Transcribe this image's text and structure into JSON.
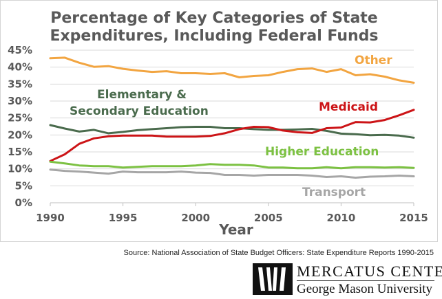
{
  "chart_data": {
    "type": "line",
    "title_lines": [
      "Percentage of Key Categories of State",
      "Expenditures, Including Federal Funds"
    ],
    "xlabel": "Year",
    "ylabel": "",
    "xlim": [
      1990,
      2015
    ],
    "ylim": [
      0,
      45
    ],
    "x_ticks": [
      1990,
      1995,
      2000,
      2005,
      2010,
      2015
    ],
    "y_ticks": [
      "0%",
      "5%",
      "10%",
      "15%",
      "20%",
      "25%",
      "30%",
      "35%",
      "40%",
      "45%"
    ],
    "grid": true,
    "legend": "none",
    "x": [
      1990,
      1991,
      1992,
      1993,
      1994,
      1995,
      1996,
      1997,
      1998,
      1999,
      2000,
      2001,
      2002,
      2003,
      2004,
      2005,
      2006,
      2007,
      2008,
      2009,
      2010,
      2011,
      2012,
      2013,
      2014,
      2015
    ],
    "series": [
      {
        "name": "Other",
        "label_lines": [
          "Other"
        ],
        "color": "#F2A541",
        "values": [
          42.6,
          42.8,
          41.3,
          40.1,
          40.3,
          39.5,
          39.0,
          38.6,
          38.8,
          38.2,
          38.2,
          38.0,
          38.2,
          37.0,
          37.4,
          37.6,
          38.6,
          39.4,
          39.6,
          38.6,
          39.4,
          37.6,
          37.9,
          37.2,
          36.1,
          35.4
        ]
      },
      {
        "name": "Elementary & Secondary Education",
        "label_lines": [
          "Elementary &",
          "Secondary Education"
        ],
        "color": "#4A6B4D",
        "values": [
          22.9,
          21.9,
          21.0,
          21.5,
          20.5,
          20.9,
          21.4,
          21.7,
          22.0,
          22.3,
          22.4,
          22.4,
          22.0,
          22.0,
          21.7,
          21.5,
          21.5,
          21.6,
          21.8,
          21.2,
          20.4,
          20.2,
          19.9,
          20.0,
          19.8,
          19.2
        ]
      },
      {
        "name": "Medicaid",
        "label_lines": [
          "Medicaid"
        ],
        "color": "#CC1417",
        "values": [
          12.3,
          14.3,
          17.4,
          19.0,
          19.6,
          19.8,
          19.8,
          19.8,
          19.5,
          19.5,
          19.5,
          19.7,
          20.5,
          21.7,
          22.4,
          22.3,
          21.3,
          20.8,
          20.6,
          22.0,
          22.2,
          23.8,
          23.7,
          24.4,
          25.8,
          27.4
        ]
      },
      {
        "name": "Higher Education",
        "label_lines": [
          "Higher Education"
        ],
        "color": "#7CC142",
        "values": [
          12.1,
          11.6,
          11.0,
          10.8,
          10.8,
          10.4,
          10.6,
          10.8,
          10.8,
          10.8,
          11.0,
          11.4,
          11.2,
          11.2,
          11.0,
          10.4,
          10.4,
          10.2,
          10.2,
          10.5,
          10.2,
          10.5,
          10.5,
          10.4,
          10.5,
          10.3
        ]
      },
      {
        "name": "Transport",
        "label_lines": [
          "Transport"
        ],
        "color": "#A6A6A6",
        "values": [
          9.8,
          9.4,
          9.2,
          8.9,
          8.6,
          9.2,
          9.0,
          9.0,
          9.0,
          9.2,
          8.9,
          8.8,
          8.2,
          8.2,
          8.0,
          8.2,
          8.2,
          8.2,
          8.0,
          7.6,
          7.8,
          7.4,
          7.7,
          7.8,
          8.0,
          7.8
        ]
      }
    ]
  },
  "source_note": "Source: National Association of State Budget Officers: State Expenditure Reports 1990-2015",
  "logo": {
    "name": "MERCATUS CENTER",
    "subtitle": "George Mason University"
  }
}
